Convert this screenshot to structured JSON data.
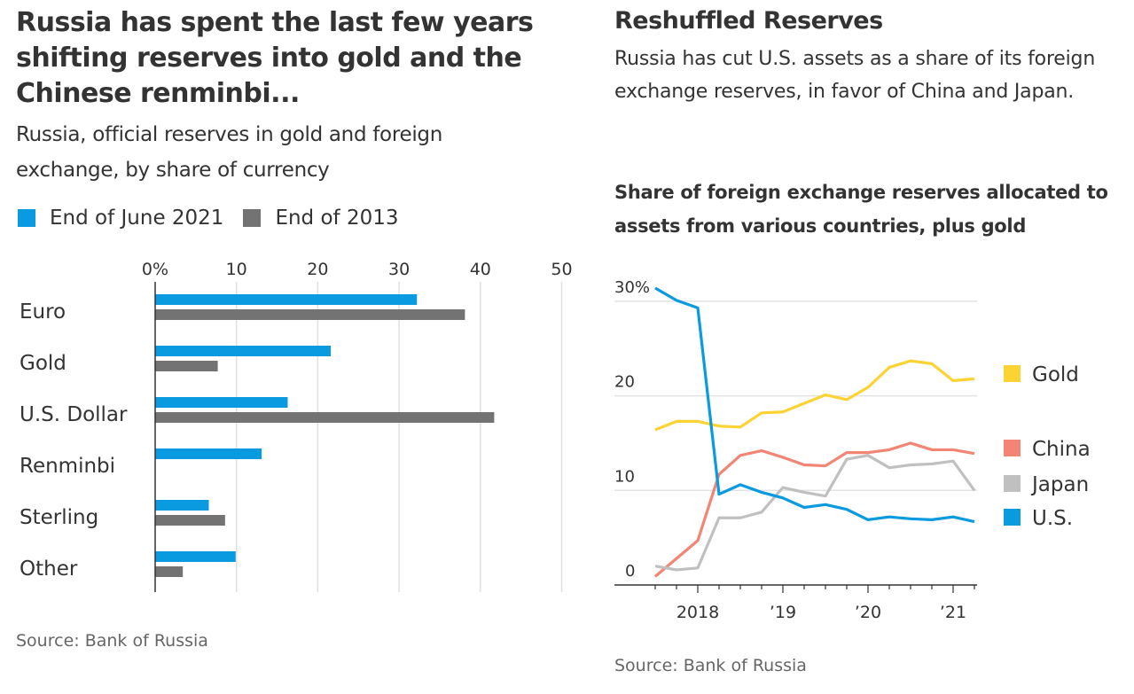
{
  "left": {
    "headline": "Russia has spent the last few years shifting reserves into gold and the Chinese renminbi...",
    "dek": "Russia, official reserves in gold and foreign exchange, by share of currency",
    "source": "Source: Bank of Russia"
  },
  "right": {
    "headline": "Reshuffled Reserves",
    "dek": "Russia has cut U.S. assets as a share of its foreign exchange reserves, in favor of China and Japan.",
    "chart_title": "Share of foreign exchange reserves allocated to assets from various countries, plus gold",
    "source": "Source: Bank of Russia"
  },
  "chart_data": [
    {
      "type": "bar",
      "orientation": "horizontal",
      "title": "Russia has spent the last few years shifting reserves into gold and the Chinese renminbi...",
      "subtitle": "Russia, official reserves in gold and foreign exchange, by share of currency",
      "categories": [
        "Euro",
        "Gold",
        "U.S. Dollar",
        "Renminbi",
        "Sterling",
        "Other"
      ],
      "series": [
        {
          "name": "End of June 2021",
          "color": "#0a9ae0",
          "values": [
            32.2,
            21.6,
            16.3,
            13.1,
            6.6,
            9.9
          ]
        },
        {
          "name": "End of 2013",
          "color": "#737373",
          "values": [
            38.1,
            7.7,
            41.7,
            null,
            8.6,
            3.4
          ]
        }
      ],
      "xlim": [
        0,
        50
      ],
      "xticks": [
        0,
        10,
        20,
        30,
        40,
        50
      ],
      "xtick_labels": [
        "0%",
        "10",
        "20",
        "30",
        "40",
        "50"
      ],
      "xaxis_position": "top",
      "grid": true,
      "legend": "top-left",
      "source": "Source: Bank of Russia"
    },
    {
      "type": "line",
      "title": "Share of foreign exchange reserves allocated to assets from various countries, plus gold",
      "x": [
        "2017-Q3",
        "2017-Q4",
        "2018-Q1",
        "2018-Q2",
        "2018-Q3",
        "2018-Q4",
        "2019-Q1",
        "2019-Q2",
        "2019-Q3",
        "2019-Q4",
        "2020-Q1",
        "2020-Q2",
        "2020-Q3",
        "2020-Q4",
        "2021-Q1",
        "2021-Q2"
      ],
      "series": [
        {
          "name": "Gold",
          "color": "#fdd334",
          "values": [
            16.4,
            17.3,
            17.3,
            16.8,
            16.7,
            18.2,
            18.3,
            19.2,
            20.1,
            19.6,
            20.9,
            23.0,
            23.7,
            23.4,
            21.6,
            21.8
          ]
        },
        {
          "name": "China",
          "color": "#f28574",
          "values": [
            0.9,
            2.8,
            4.7,
            11.7,
            13.7,
            14.2,
            13.5,
            12.7,
            12.6,
            14.0,
            14.0,
            14.3,
            15.0,
            14.3,
            14.3,
            13.9
          ]
        },
        {
          "name": "Japan",
          "color": "#c0c0c0",
          "values": [
            2.0,
            1.6,
            1.8,
            7.1,
            7.1,
            7.7,
            10.3,
            9.8,
            9.4,
            13.3,
            13.7,
            12.4,
            12.7,
            12.8,
            13.1,
            10.0
          ]
        },
        {
          "name": "U.S.",
          "color": "#0a9ae0",
          "values": [
            31.4,
            30.1,
            29.3,
            9.6,
            10.6,
            9.8,
            9.2,
            8.2,
            8.5,
            8.0,
            6.9,
            7.2,
            7.0,
            6.9,
            7.2,
            6.7
          ]
        }
      ],
      "ylim": [
        0,
        30
      ],
      "yticks": [
        0,
        10,
        20,
        30
      ],
      "ytick_labels": [
        "0",
        "10",
        "20",
        "30%"
      ],
      "xtick_labels": [
        {
          "at": "2018-Q1",
          "label": "2018"
        },
        {
          "at": "2019-Q1",
          "label": "’19"
        },
        {
          "at": "2020-Q1",
          "label": "’20"
        },
        {
          "at": "2021-Q1",
          "label": "’21"
        }
      ],
      "grid": true,
      "legend": "right",
      "source": "Source: Bank of Russia"
    }
  ]
}
